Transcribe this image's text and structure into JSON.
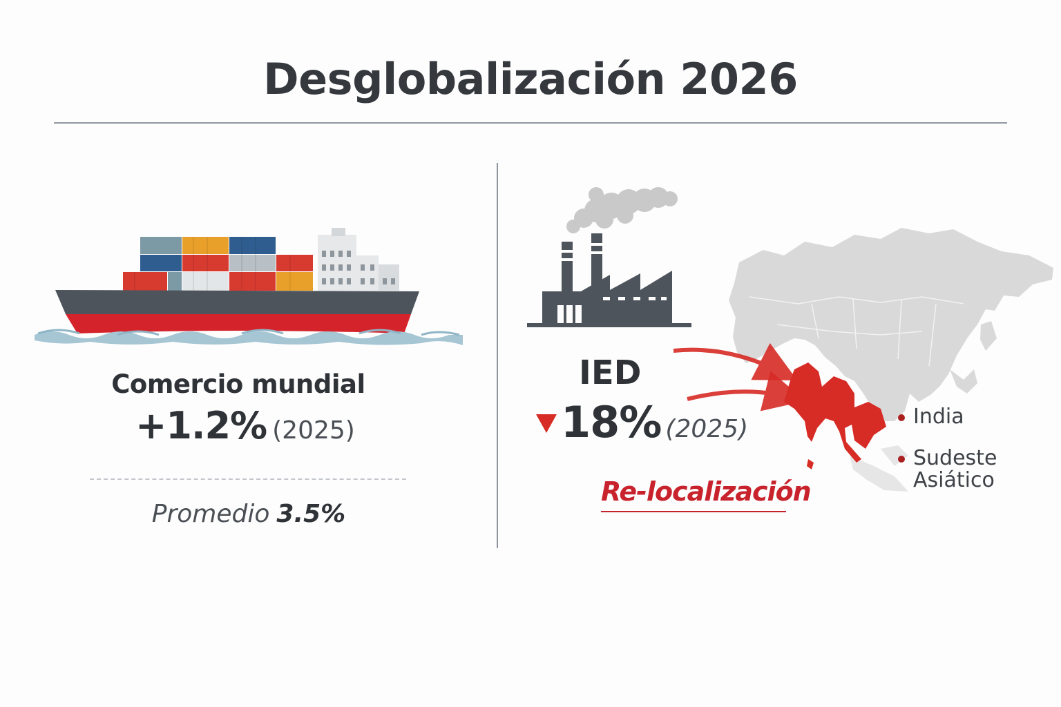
{
  "title": "Desglobalización 2026",
  "trade": {
    "label": "Comercio mundial",
    "value": "+1.2%",
    "year": "(2025)",
    "average_label": "Promedio",
    "average_value": "3.5%"
  },
  "fdi": {
    "label": "IED",
    "value": "18%",
    "direction": "down",
    "year": "(2025)",
    "relocation_label": "Re-localización"
  },
  "map_legend": [
    {
      "label": "India"
    },
    {
      "label": "Sudeste Asiático"
    }
  ],
  "icons": {
    "ship": "cargo-ship-icon",
    "factory": "factory-icon",
    "map": "asia-map",
    "arrow": "down-triangle-icon"
  },
  "colors": {
    "accent_red": "#d72b25",
    "dark_text": "#2f3338",
    "map_gray": "#d9d9d9",
    "water": "#8fb5c6"
  }
}
